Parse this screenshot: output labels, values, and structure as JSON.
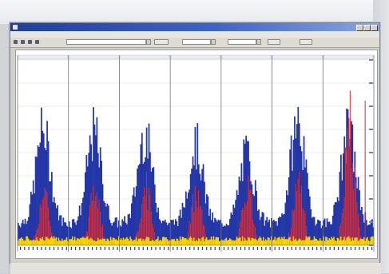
{
  "window": {
    "title": "",
    "menu": [
      "",
      "",
      ""
    ]
  },
  "toolbar": {
    "field1": "",
    "field2": "",
    "field3": ""
  },
  "chart_data": {
    "type": "bar",
    "title": "",
    "panels": 7,
    "panel_labels": [
      "",
      "",
      "",
      "",
      "",
      "",
      ""
    ],
    "series": [
      {
        "color": "#2437a6",
        "role": "blue-bars"
      },
      {
        "color": "#e52a2a",
        "role": "red-bars"
      },
      {
        "color": "#ffd800",
        "role": "yellow-bars"
      }
    ],
    "grid": true,
    "legend": "bottom",
    "blue_peaks": [
      0.62,
      0.6,
      0.6,
      0.54,
      0.49,
      0.66,
      0.61
    ],
    "red_peaks": [
      0.3,
      0.34,
      0.34,
      0.34,
      0.35,
      0.4,
      0.72
    ],
    "yellow_level": 0.035,
    "baseline_fraction": 0.12
  },
  "colors": {
    "accent": "#2437a6",
    "secondary": "#e52a2a",
    "tertiary": "#ffd800",
    "window_bg": "#d4d0c8"
  }
}
